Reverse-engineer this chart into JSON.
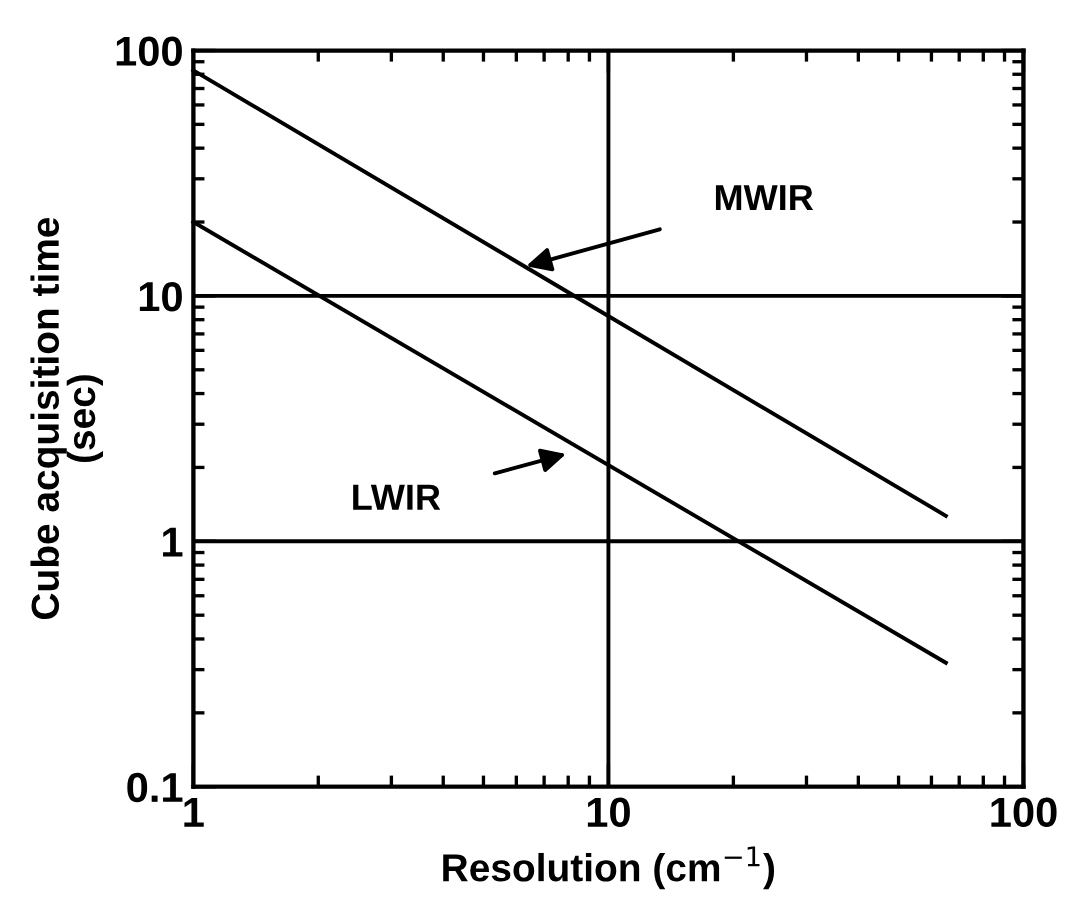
{
  "chart_data": {
    "type": "line",
    "xlabel": "Resolution (cm$^{−1}$)",
    "ylabel": "Cube acquisition time\n(sec)",
    "log": "xy",
    "grid": true,
    "legend": false,
    "x": [
      1,
      65
    ],
    "series": [
      {
        "values": [
          83,
          1.27
        ],
        "color": "#000000",
        "line_style": "solid"
      },
      {
        "values": [
          20,
          0.32
        ],
        "color": "#000000",
        "line_style": "solid"
      }
    ],
    "annotations": [
      "MWIR",
      "LWIR"
    ],
    "xlim": [
      1,
      100
    ],
    "ylim": [
      0.1,
      100
    ],
    "xticks": [
      1,
      10,
      100
    ],
    "yticks": [
      0.1,
      1,
      10,
      100
    ]
  }
}
